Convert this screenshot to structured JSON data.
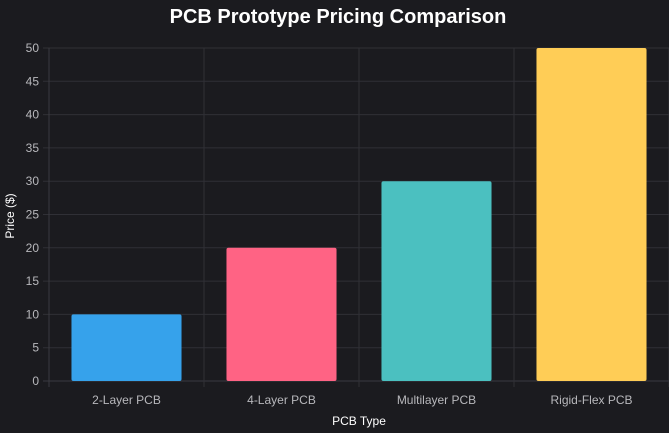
{
  "chart_data": {
    "type": "bar",
    "title": "PCB Prototype Pricing Comparison",
    "xlabel": "PCB Type",
    "ylabel": "Price ($)",
    "categories": [
      "2-Layer PCB",
      "4-Layer PCB",
      "Multilayer PCB",
      "Rigid-Flex PCB"
    ],
    "values": [
      10,
      20,
      30,
      50
    ],
    "ylim": [
      0,
      50
    ],
    "yticks": [
      0,
      5,
      10,
      15,
      20,
      25,
      30,
      35,
      40,
      45,
      50
    ],
    "grid": true,
    "legend": "none",
    "colors": {
      "background": "#1b1b1f",
      "bars": [
        "#36a2eb",
        "#ff6384",
        "#4bc0c0",
        "#ffcd56"
      ]
    }
  }
}
